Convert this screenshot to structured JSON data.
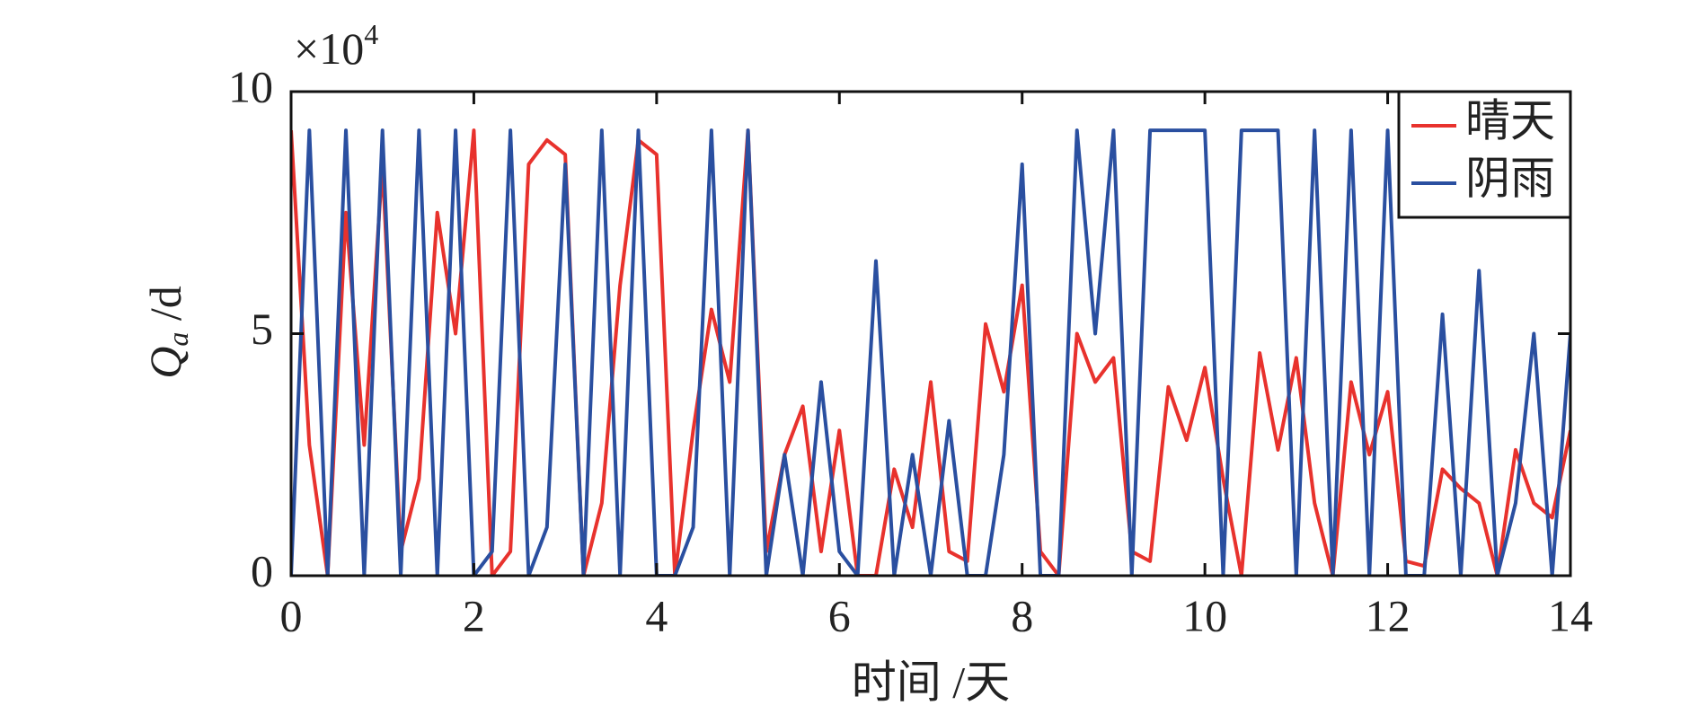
{
  "chart_data": {
    "type": "line",
    "xlabel": "时间 /天",
    "ylabel": {
      "main": "Q",
      "sub": "a",
      "rest": " /d"
    },
    "y_scale": {
      "base": "×10",
      "exponent": "4"
    },
    "x": [
      0,
      0.2,
      0.4,
      0.6,
      0.8,
      1.0,
      1.2,
      1.4,
      1.6,
      1.8,
      2.0,
      2.2,
      2.4,
      2.6,
      2.8,
      3.0,
      3.2,
      3.4,
      3.6,
      3.8,
      4.0,
      4.2,
      4.4,
      4.6,
      4.8,
      5.0,
      5.2,
      5.4,
      5.6,
      5.8,
      6.0,
      6.2,
      6.4,
      6.6,
      6.8,
      7.0,
      7.2,
      7.4,
      7.6,
      7.8,
      8.0,
      8.2,
      8.4,
      8.6,
      8.8,
      9.0,
      9.2,
      9.4,
      9.6,
      9.8,
      10.0,
      10.2,
      10.4,
      10.6,
      10.8,
      11.0,
      11.2,
      11.4,
      11.6,
      11.8,
      12.0,
      12.2,
      12.4,
      12.6,
      12.8,
      13.0,
      13.2,
      13.4,
      13.6,
      13.8,
      14.0
    ],
    "series": [
      {
        "name": "晴天",
        "color": "#e8322d",
        "values": [
          9.2,
          2.7,
          0,
          7.5,
          2.7,
          8.5,
          0.5,
          2,
          7.5,
          5,
          9.2,
          0,
          0.5,
          8.5,
          9,
          8.7,
          0,
          1.5,
          6,
          9,
          8.7,
          0,
          3,
          5.5,
          4,
          9.2,
          0.5,
          2.5,
          3.5,
          0.5,
          3,
          0,
          0,
          2.2,
          1,
          4,
          0.5,
          0.3,
          5.2,
          3.8,
          6,
          0.5,
          0,
          5,
          4,
          4.5,
          0.5,
          0.3,
          3.9,
          2.8,
          4.3,
          2,
          0,
          4.6,
          2.6,
          4.5,
          1.5,
          0,
          4,
          2.5,
          3.8,
          0.3,
          0.2,
          2.2,
          1.8,
          1.5,
          0,
          2.6,
          1.5,
          1.2,
          3
        ]
      },
      {
        "name": "阴雨",
        "color": "#2a4fa0",
        "values": [
          0,
          9.2,
          0,
          9.2,
          0,
          9.2,
          0,
          9.2,
          0,
          9.2,
          0,
          0.5,
          9.2,
          0,
          1,
          8.5,
          0,
          9.2,
          0,
          9.2,
          0,
          0,
          1,
          9.2,
          0,
          9.2,
          0,
          2.5,
          0,
          4,
          0.5,
          0,
          6.5,
          0,
          2.5,
          0,
          3.2,
          0,
          0,
          2.5,
          8.5,
          0,
          0,
          9.2,
          5,
          9.2,
          0,
          9.2,
          9.2,
          9.2,
          9.2,
          0,
          9.2,
          9.2,
          9.2,
          0,
          9.2,
          0,
          9.2,
          0,
          9.2,
          0,
          0,
          5.4,
          0,
          6.3,
          0,
          1.5,
          5,
          0,
          5
        ]
      }
    ],
    "xlim": [
      0,
      14
    ],
    "xticks": [
      0,
      2,
      4,
      6,
      8,
      10,
      12,
      14
    ],
    "ylim": [
      0,
      10
    ],
    "yticks": [
      0,
      5,
      10
    ],
    "legend": "upper right"
  }
}
